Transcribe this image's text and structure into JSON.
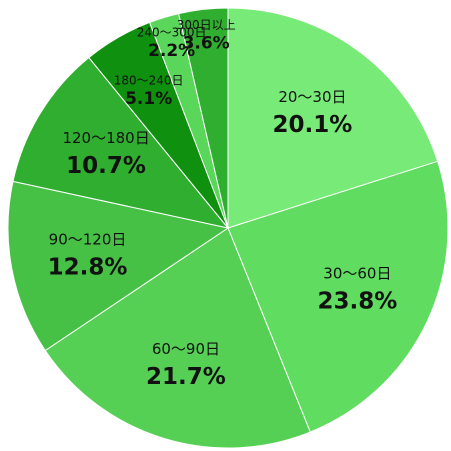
{
  "chart_data": {
    "type": "pie",
    "categories": [
      "20～30日",
      "30～60日",
      "60～90日",
      "90～120日",
      "120～180日",
      "180～240日",
      "240～300日",
      "300日以上"
    ],
    "values": [
      20.1,
      23.8,
      21.7,
      12.8,
      10.7,
      5.1,
      2.2,
      3.6
    ],
    "value_labels": [
      "20.1%",
      "23.8%",
      "21.7%",
      "12.8%",
      "10.7%",
      "5.1%",
      "2.2%",
      "3.6%"
    ],
    "colors": [
      "#77ea77",
      "#60dd60",
      "#55d055",
      "#46c146",
      "#30ae30",
      "#0f900f",
      "#5ad65a",
      "#30ae30"
    ]
  }
}
